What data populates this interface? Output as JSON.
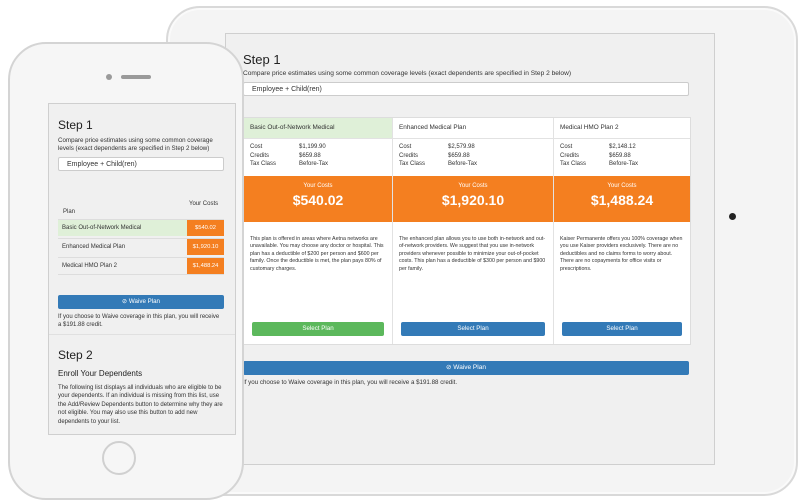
{
  "tablet": {
    "step_title": "Step 1",
    "step_desc": "Compare price estimates using some common coverage levels (exact dependents are specified in Step 2 below)",
    "coverage_select": "Employee + Child(ren)",
    "cards": [
      {
        "plan": "Basic Out-of-Network Medical",
        "selected": true,
        "cost_label": "Cost",
        "cost": "$1,199.90",
        "credits_label": "Credits",
        "credits": "$659.88",
        "tax_label": "Tax Class",
        "tax": "Before-Tax",
        "your_costs_label": "Your Costs",
        "your_costs": "$540.02",
        "description": "This plan is offered in areas where Aetna networks are unavailable. You may choose any doctor or hospital. This plan has a deductible of $200 per person and $600 per family. Once the deductible is met, the plan pays 80% of customary charges.",
        "button": "Select Plan",
        "button_color": "#5cb85c"
      },
      {
        "plan": "Enhanced Medical Plan",
        "selected": false,
        "cost_label": "Cost",
        "cost": "$2,579.98",
        "credits_label": "Credits",
        "credits": "$659.88",
        "tax_label": "Tax Class",
        "tax": "Before-Tax",
        "your_costs_label": "Your Costs",
        "your_costs": "$1,920.10",
        "description": "The enhanced plan allows you to use both in-network and out-of-network providers. We suggest that you use in-network providers whenever possible to minimize your out-of-pocket costs. This plan has a deductible of $300 per person and $900 per family.",
        "button": "Select Plan",
        "button_color": "#337ab7"
      },
      {
        "plan": "Medical HMO Plan 2",
        "selected": false,
        "cost_label": "Cost",
        "cost": "$2,148.12",
        "credits_label": "Credits",
        "credits": "$659.88",
        "tax_label": "Tax Class",
        "tax": "Before-Tax",
        "your_costs_label": "Your Costs",
        "your_costs": "$1,488.24",
        "description": "Kaiser Permanente offers you 100% coverage when you use Kaiser providers exclusively. There are no deductibles and no claims forms to worry about. There are no copayments for office visits or prescriptions.",
        "button": "Select Plan",
        "button_color": "#337ab7"
      }
    ],
    "waive_button": "⊘ Waive Plan",
    "waive_note": "If you choose to Waive coverage in this plan, you will receive a $191.88 credit."
  },
  "phone": {
    "step_title": "Step 1",
    "step_desc": "Compare price estimates using some common coverage levels (exact dependents are specified in Step 2 below)",
    "coverage_select": "Employee + Child(ren)",
    "col_plan": "Plan",
    "col_cost": "Your Costs",
    "rows": [
      {
        "plan": "Basic Out-of-Network Medical",
        "cost": "$540.02",
        "selected": true
      },
      {
        "plan": "Enhanced Medical Plan",
        "cost": "$1,920.10",
        "selected": false
      },
      {
        "plan": "Medical HMO Plan 2",
        "cost": "$1,488.24",
        "selected": false
      }
    ],
    "waive_button": "⊘ Waive Plan",
    "waive_note": "If you choose to Waive coverage in this plan, you will receive a $191.88 credit.",
    "step2_title": "Step 2",
    "enroll_title": "Enroll Your Dependents",
    "enroll_desc": "The following list displays all individuals who are eligible to be your dependents. If an individual is missing from this list, use the Add/Review Dependents button to determine why they are not eligible. You may also use this button to add new dependents to your list."
  },
  "colors": {
    "accent_orange": "#f47f20",
    "primary_blue": "#337ab7",
    "success_green": "#5cb85c",
    "selected_row": "#dff0d8"
  }
}
